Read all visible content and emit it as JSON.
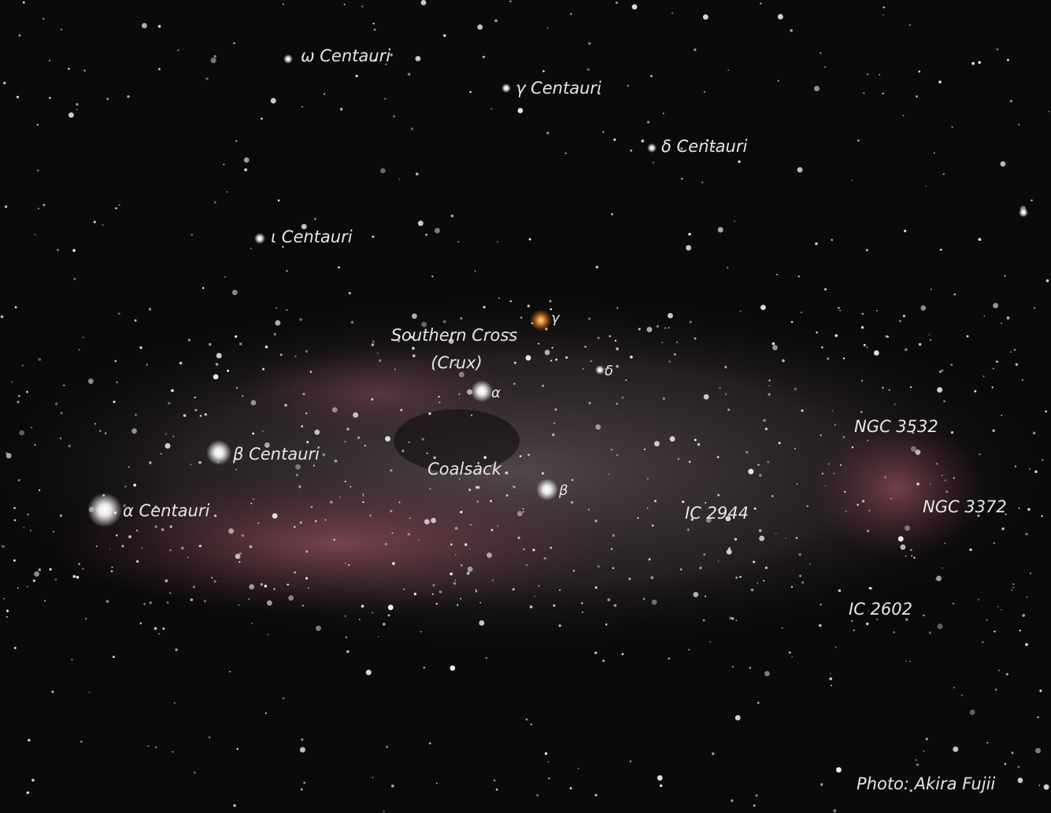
{
  "labels": [
    "ω Centauri",
    "γ Centauri",
    "δ Centauri",
    "ι Centauri",
    "Southern Cross",
    "(Crux)",
    "γ",
    "δ",
    "α",
    "β",
    "β Centauri",
    "α Centauri",
    "Coalsack",
    "NGC 3532",
    "NGC 3372",
    "IC 2944",
    "IC 2602",
    "Photo: Akira Fujii"
  ]
}
